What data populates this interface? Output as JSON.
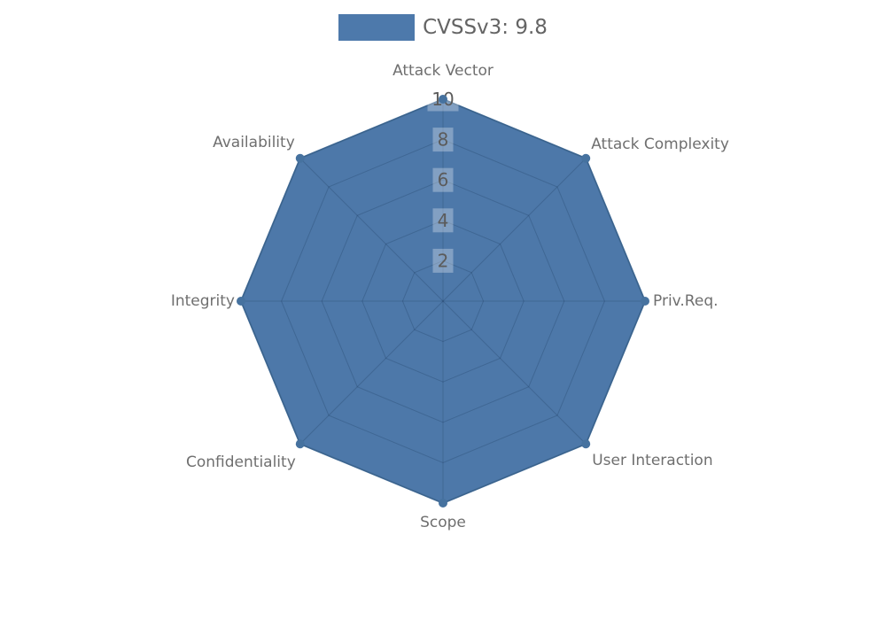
{
  "chart_data": {
    "type": "radar",
    "categories": [
      "Attack Vector",
      "Attack Complexity",
      "Priv.Req.",
      "User Interaction",
      "Scope",
      "Confidentiality",
      "Integrity",
      "Availability"
    ],
    "series": [
      {
        "name": "CVSSv3: 9.8",
        "values": [
          10,
          10,
          10,
          10,
          10,
          10,
          10,
          10
        ]
      }
    ],
    "scale": {
      "min": 0,
      "max": 10,
      "ticks": [
        2,
        4,
        6,
        8,
        10
      ]
    },
    "grid": true,
    "legend_position": "top",
    "colors": {
      "fill": "#4d78a9",
      "border": "#46719d",
      "point": "#46729f",
      "grid_line": "rgba(10,35,65,0.2)",
      "tick_text": "#5b5b5b",
      "tick_backdrop": "rgba(255,255,255,0.3)",
      "axis_label": "#6f6f6f",
      "legend_swatch": "#4d79ab",
      "legend_text": "#646464",
      "background": "#ffffff"
    }
  }
}
